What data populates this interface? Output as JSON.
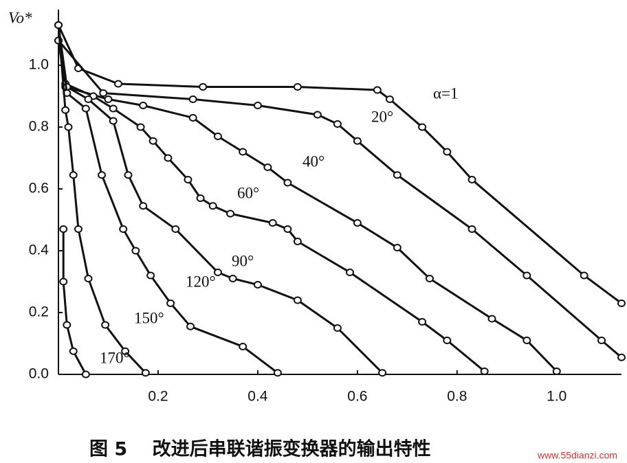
{
  "chart_data": {
    "type": "line",
    "y_label": "Vo*",
    "caption": "图 5　 改进后串联谐振变换器的输出特性",
    "watermark": "www.55dianzi.com",
    "xlim": [
      0,
      1.13
    ],
    "ylim": [
      0,
      1.18
    ],
    "xticks": [
      0.2,
      0.4,
      0.6,
      0.8,
      {
        "value": 1,
        "label": "1.0"
      }
    ],
    "yticks": [
      {
        "value": 0,
        "label": "0.0"
      },
      0.2,
      0.4,
      0.6,
      0.8,
      {
        "value": 1,
        "label": "1.0"
      }
    ],
    "series": [
      {
        "name": "α=1",
        "color": "#111111",
        "x": [
          0,
          0.04,
          0.12,
          0.29,
          0.48,
          0.64,
          0.665,
          0.73,
          0.78,
          0.83,
          1.055,
          1.13
        ],
        "values": [
          1.13,
          0.99,
          0.94,
          0.93,
          0.93,
          0.92,
          0.89,
          0.8,
          0.72,
          0.63,
          0.32,
          0.23
        ]
      },
      {
        "name": "20°",
        "color": "#111111",
        "x": [
          0,
          0.09,
          0.27,
          0.4,
          0.52,
          0.56,
          0.6,
          0.68,
          0.83,
          0.94,
          1.09,
          1.13
        ],
        "values": [
          1.08,
          0.91,
          0.89,
          0.87,
          0.84,
          0.81,
          0.755,
          0.645,
          0.47,
          0.32,
          0.11,
          0.055
        ]
      },
      {
        "name": "40°",
        "color": "#111111",
        "x": [
          0,
          0.014,
          0.1,
          0.17,
          0.27,
          0.32,
          0.37,
          0.42,
          0.46,
          0.6,
          0.68,
          0.745,
          0.87,
          0.94,
          1.0
        ],
        "values": [
          1.08,
          0.93,
          0.89,
          0.87,
          0.83,
          0.77,
          0.72,
          0.67,
          0.62,
          0.49,
          0.41,
          0.31,
          0.18,
          0.11,
          0.01
        ]
      },
      {
        "name": "60°",
        "color": "#111111",
        "x": [
          0,
          0.014,
          0.07,
          0.11,
          0.165,
          0.19,
          0.22,
          0.26,
          0.285,
          0.31,
          0.345,
          0.43,
          0.46,
          0.48,
          0.585,
          0.73,
          0.78,
          0.855
        ],
        "values": [
          1.08,
          0.94,
          0.9,
          0.86,
          0.8,
          0.755,
          0.7,
          0.63,
          0.57,
          0.545,
          0.52,
          0.49,
          0.47,
          0.43,
          0.33,
          0.17,
          0.11,
          0.01
        ]
      },
      {
        "name": "90°",
        "color": "#111111",
        "x": [
          0,
          0.017,
          0.06,
          0.11,
          0.14,
          0.17,
          0.235,
          0.32,
          0.35,
          0.4,
          0.48,
          0.56,
          0.65
        ],
        "values": [
          1.13,
          0.93,
          0.89,
          0.82,
          0.645,
          0.545,
          0.47,
          0.33,
          0.31,
          0.29,
          0.24,
          0.15,
          0.005
        ]
      },
      {
        "name": "120°",
        "color": "#111111",
        "x": [
          0,
          0.017,
          0.055,
          0.087,
          0.13,
          0.155,
          0.185,
          0.225,
          0.265,
          0.37,
          0.44
        ],
        "values": [
          1.13,
          0.91,
          0.86,
          0.645,
          0.47,
          0.4,
          0.32,
          0.23,
          0.155,
          0.09,
          0.005
        ]
      },
      {
        "name": "150°",
        "color": "#111111",
        "x": [
          0,
          0.014,
          0.02,
          0.03,
          0.04,
          0.06,
          0.094,
          0.134,
          0.175
        ],
        "values": [
          1.13,
          0.855,
          0.8,
          0.645,
          0.47,
          0.31,
          0.16,
          0.075,
          0.005
        ]
      },
      {
        "name": "170°",
        "color": "#111111",
        "x": [
          0.01,
          0.01,
          0.017,
          0.03,
          0.055
        ],
        "values": [
          0.47,
          0.3,
          0.16,
          0.075,
          0
        ]
      }
    ]
  }
}
